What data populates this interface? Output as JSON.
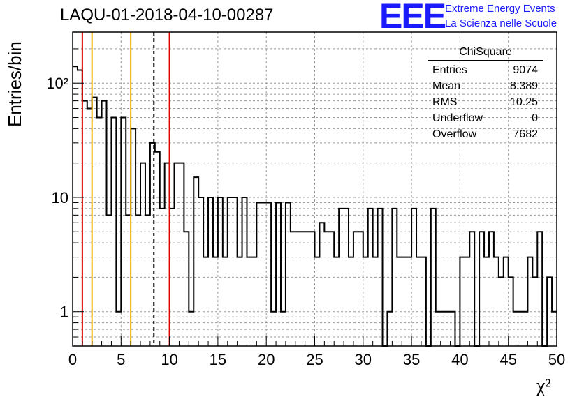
{
  "header": {
    "title": "LAQU-01-2018-04-10-00287",
    "logo_text": "EEE",
    "logo_line1": "Extreme Energy Events",
    "logo_line2": "La Scienza nelle Scuole"
  },
  "stats": {
    "name": "ChiSquare",
    "rows": [
      {
        "label": "Entries",
        "value": "9074"
      },
      {
        "label": "Mean",
        "value": "8.389"
      },
      {
        "label": "RMS",
        "value": "10.25"
      },
      {
        "label": "Underflow",
        "value": "0"
      },
      {
        "label": "Overflow",
        "value": "7682"
      }
    ]
  },
  "colors": {
    "red_line": "#dd0000",
    "yellow_line": "#f0b400",
    "logo": "#1a1aff"
  },
  "chart_data": {
    "type": "histogram",
    "xlabel": "χ²",
    "ylabel": "Entries/bin",
    "xlim": [
      0,
      50
    ],
    "ylim": [
      0.5,
      280
    ],
    "yscale": "log",
    "grid": true,
    "bin_width": 0.5,
    "x_ticks": [
      "0",
      "5",
      "10",
      "15",
      "20",
      "25",
      "30",
      "35",
      "40",
      "45",
      "50"
    ],
    "y_ticks": [
      {
        "value": 1,
        "label": "1"
      },
      {
        "value": 10,
        "label": "10"
      },
      {
        "value": 100,
        "label": "10²"
      }
    ],
    "bin_counts": [
      140,
      130,
      70,
      60,
      75,
      50,
      70,
      7,
      50,
      1,
      50,
      7,
      40,
      7,
      20,
      7,
      30,
      25,
      8,
      20,
      8,
      20,
      20,
      5,
      1,
      15,
      10,
      3,
      10,
      3,
      10,
      3,
      10,
      10,
      3,
      10,
      3,
      3,
      9,
      9,
      9,
      1,
      9,
      1,
      9,
      5,
      5,
      5,
      5,
      5,
      3,
      6,
      5,
      5,
      3,
      8,
      8,
      3,
      5,
      5,
      3,
      8,
      3,
      8,
      0,
      1,
      8,
      3,
      3,
      3,
      8,
      3,
      3,
      0,
      8,
      1,
      1,
      1,
      1,
      0,
      3,
      3,
      5,
      0,
      5,
      3,
      5,
      3,
      2,
      3,
      2,
      1,
      1,
      1,
      3,
      2,
      5,
      0,
      2,
      1
    ],
    "vertical_lines": [
      {
        "x": 1,
        "color": "red",
        "style": "solid"
      },
      {
        "x": 2,
        "color": "yellow",
        "style": "solid"
      },
      {
        "x": 6,
        "color": "yellow",
        "style": "solid"
      },
      {
        "x": 8.389,
        "color": "black",
        "style": "dashed"
      },
      {
        "x": 10,
        "color": "red",
        "style": "solid"
      }
    ]
  }
}
